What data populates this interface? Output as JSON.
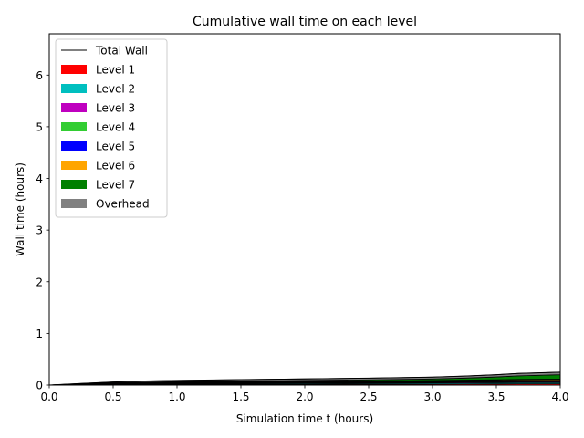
{
  "chart_data": {
    "type": "area",
    "title": "Cumulative wall time on each level",
    "xlabel": "Simulation time t (hours)",
    "ylabel": "Wall time (hours)",
    "xlim": [
      0,
      4.0
    ],
    "ylim": [
      0,
      6.8
    ],
    "xticks": [
      0.0,
      0.5,
      1.0,
      1.5,
      2.0,
      2.5,
      3.0,
      3.5,
      4.0
    ],
    "xtick_labels": [
      "0.0",
      "0.5",
      "1.0",
      "1.5",
      "2.0",
      "2.5",
      "3.0",
      "3.5",
      "4.0"
    ],
    "yticks": [
      0,
      1,
      2,
      3,
      4,
      5,
      6
    ],
    "ytick_labels": [
      "0",
      "1",
      "2",
      "3",
      "4",
      "5",
      "6"
    ],
    "grid": false,
    "legend_position": "top-left",
    "x": [
      0.0,
      0.25,
      0.5,
      0.75,
      1.0,
      1.5,
      2.0,
      2.5,
      3.0,
      3.25,
      3.5,
      3.67,
      4.0
    ],
    "series": [
      {
        "name": "Level 1",
        "color": "#ff0000",
        "values": [
          0,
          0.006,
          0.01,
          0.012,
          0.013,
          0.015,
          0.017,
          0.019,
          0.021,
          0.022,
          0.023,
          0.024,
          0.025
        ]
      },
      {
        "name": "Level 2",
        "color": "#00bfbf",
        "values": [
          0,
          0.006,
          0.01,
          0.012,
          0.013,
          0.015,
          0.017,
          0.019,
          0.021,
          0.022,
          0.023,
          0.024,
          0.025
        ]
      },
      {
        "name": "Level 3",
        "color": "#bf00bf",
        "values": [
          0,
          0.004,
          0.007,
          0.009,
          0.01,
          0.011,
          0.012,
          0.013,
          0.014,
          0.015,
          0.016,
          0.016,
          0.017
        ]
      },
      {
        "name": "Level 4",
        "color": "#32cd32",
        "values": [
          0,
          0.003,
          0.005,
          0.006,
          0.007,
          0.008,
          0.009,
          0.01,
          0.011,
          0.012,
          0.013,
          0.014,
          0.015
        ]
      },
      {
        "name": "Level 5",
        "color": "#0000ff",
        "values": [
          0,
          0.002,
          0.004,
          0.005,
          0.006,
          0.007,
          0.008,
          0.009,
          0.01,
          0.011,
          0.012,
          0.013,
          0.014
        ]
      },
      {
        "name": "Level 6",
        "color": "#ffa500",
        "values": [
          0,
          0.002,
          0.004,
          0.005,
          0.006,
          0.007,
          0.008,
          0.01,
          0.012,
          0.014,
          0.016,
          0.018,
          0.02
        ]
      },
      {
        "name": "Level 7",
        "color": "#008000",
        "values": [
          0,
          0.003,
          0.006,
          0.009,
          0.011,
          0.014,
          0.018,
          0.022,
          0.03,
          0.04,
          0.055,
          0.07,
          0.085
        ]
      },
      {
        "name": "Overhead",
        "color": "#808080",
        "values": [
          0,
          0.004,
          0.014,
          0.022,
          0.024,
          0.028,
          0.031,
          0.033,
          0.036,
          0.039,
          0.042,
          0.046,
          0.049
        ]
      }
    ],
    "total_line": {
      "name": "Total Wall",
      "color": "#000000",
      "values": [
        0,
        0.03,
        0.06,
        0.08,
        0.09,
        0.105,
        0.12,
        0.135,
        0.155,
        0.175,
        0.2,
        0.225,
        0.25
      ]
    }
  }
}
